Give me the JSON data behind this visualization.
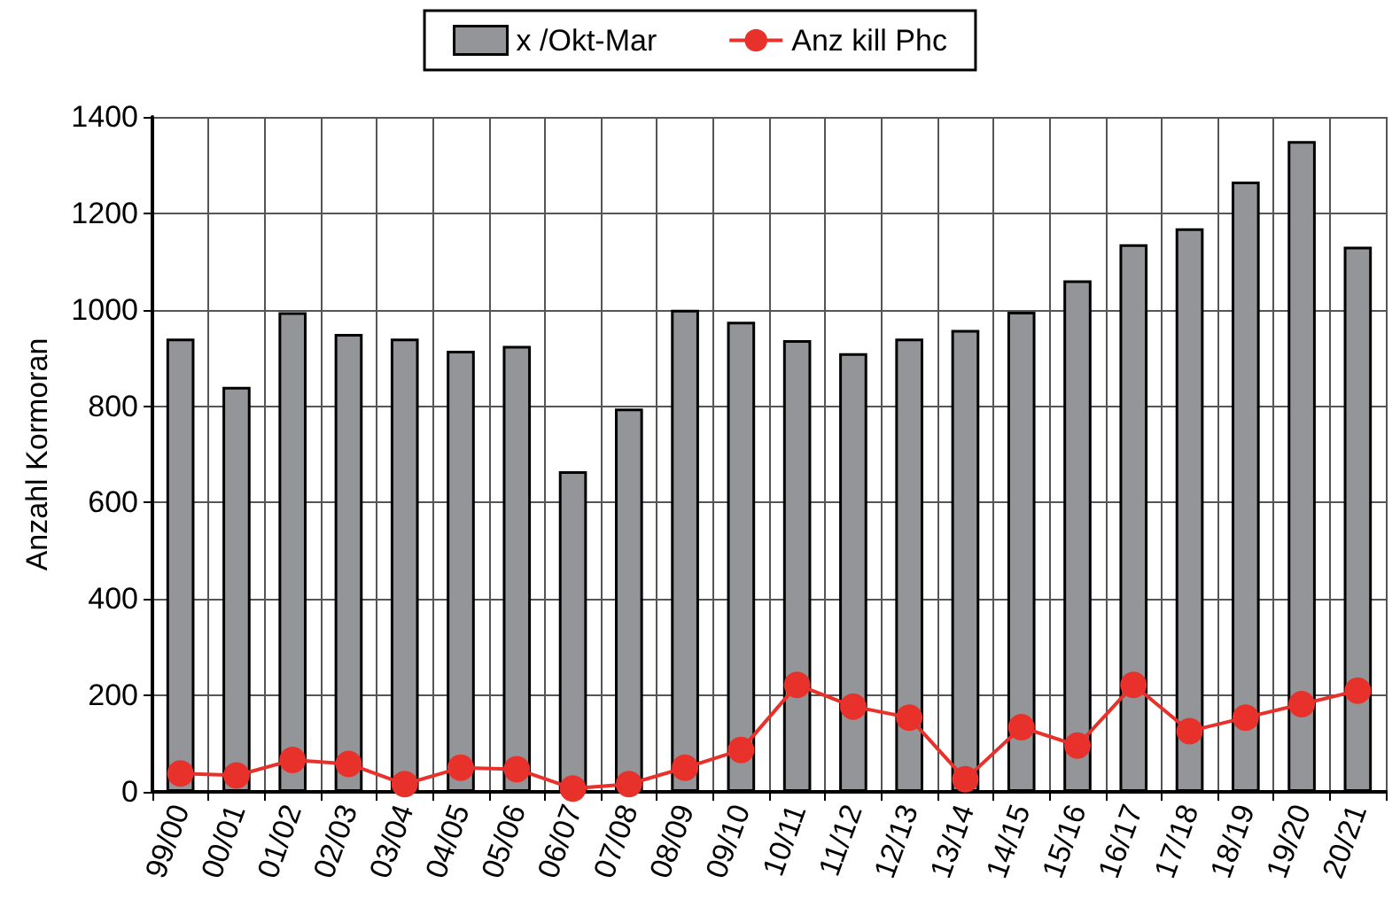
{
  "chart_data": {
    "type": "bar",
    "ylabel": "Anzahl Kormoran",
    "categories": [
      "99/00",
      "00/01",
      "01/02",
      "02/03",
      "03/04",
      "04/05",
      "05/06",
      "06/07",
      "07/08",
      "08/09",
      "09/10",
      "10/11",
      "11/12",
      "12/13",
      "13/14",
      "14/15",
      "15/16",
      "16/17",
      "17/18",
      "18/19",
      "19/20",
      "20/21"
    ],
    "series": [
      {
        "name": "x /Okt-Mar",
        "color": "#939598",
        "values": [
          940,
          840,
          995,
          950,
          940,
          915,
          925,
          665,
          795,
          1000,
          975,
          937,
          910,
          940,
          958,
          996,
          1061,
          1136,
          1169,
          1266,
          1350,
          1131
        ]
      },
      {
        "name": "Anz kill Phc",
        "type": "line",
        "color": "#e8312a",
        "values": [
          38,
          34,
          66,
          58,
          16,
          50,
          47,
          7,
          16,
          50,
          87,
          222,
          177,
          154,
          26,
          134,
          96,
          222,
          126,
          154,
          182,
          210
        ]
      }
    ],
    "ylim": [
      0,
      1400
    ],
    "yticks": [
      0,
      200,
      400,
      600,
      800,
      1000,
      1200,
      1400
    ],
    "grid": true,
    "legend": "top",
    "marker": "circle",
    "line_style": "solid"
  }
}
